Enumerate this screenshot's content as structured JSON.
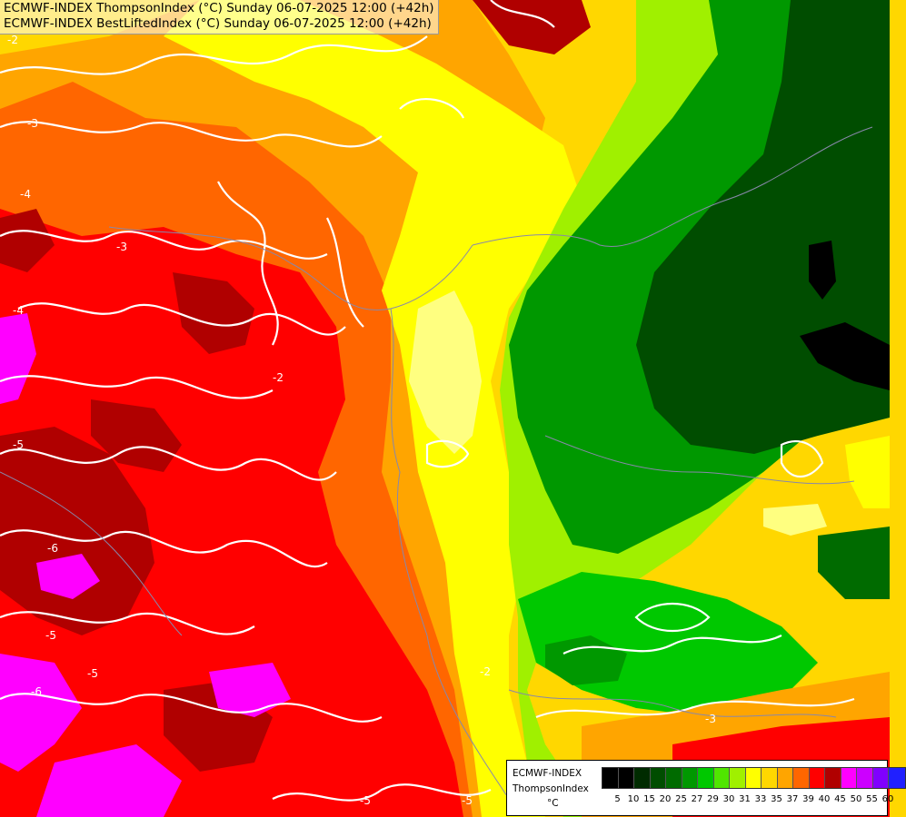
{
  "titles": {
    "line1": "ECMWF-INDEX ThompsonIndex (°C) Sunday 06-07-2025 12:00 (+42h)",
    "line2": "ECMWF-INDEX BestLiftedIndex (°C) Sunday 06-07-2025 12:00 (+42h)"
  },
  "legend": {
    "model": "ECMWF-INDEX",
    "parameter": "ThompsonIndex",
    "unit": "°C",
    "ticks": [
      "5",
      "10",
      "15",
      "20",
      "25",
      "27",
      "29",
      "30",
      "31",
      "33",
      "35",
      "37",
      "39",
      "40",
      "45",
      "50",
      "55",
      "60"
    ],
    "colors": [
      "#000000",
      "#000000",
      "#002b00",
      "#004d00",
      "#006b00",
      "#009800",
      "#00c800",
      "#50e600",
      "#a0f000",
      "#ffff00",
      "#ffd700",
      "#ffa500",
      "#ff6600",
      "#ff0000",
      "#b00000",
      "#ff00ff",
      "#cc00ff",
      "#8000ff",
      "#2020ff"
    ]
  },
  "contour_labels": [
    "-2",
    "-3",
    "-4",
    "-4",
    "-5",
    "-6",
    "-2",
    "-5",
    "-6",
    "-5",
    "-5",
    "-3",
    "-3",
    "-5",
    "-2"
  ],
  "colors": {
    "darkgreen": "#004d00",
    "green": "#009800",
    "lightgreen": "#50e600",
    "yellow": "#ffff00",
    "paleyellow": "#ffff80",
    "gold": "#ffd700",
    "orange": "#ffa500",
    "darkorange": "#ff6600",
    "red": "#ff0000",
    "darkred": "#b00000",
    "magenta": "#ff00ff"
  }
}
